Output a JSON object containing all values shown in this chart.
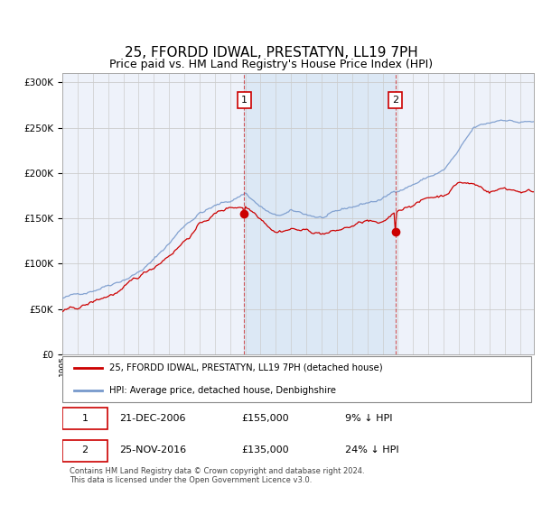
{
  "title": "25, FFORDD IDWAL, PRESTATYN, LL19 7PH",
  "subtitle": "Price paid vs. HM Land Registry's House Price Index (HPI)",
  "title_fontsize": 11,
  "subtitle_fontsize": 9,
  "bg_color": "#ffffff",
  "plot_bg_color": "#eef2fa",
  "grid_color": "#cccccc",
  "hpi_color": "#7799cc",
  "price_color": "#cc0000",
  "shade_color": "#dce8f5",
  "vline_color": "#cc3333",
  "legend_entry1": "25, FFORDD IDWAL, PRESTATYN, LL19 7PH (detached house)",
  "legend_entry2": "HPI: Average price, detached house, Denbighshire",
  "table_row1": [
    "1",
    "21-DEC-2006",
    "£155,000",
    "9% ↓ HPI"
  ],
  "table_row2": [
    "2",
    "25-NOV-2016",
    "£135,000",
    "24% ↓ HPI"
  ],
  "footnote": "Contains HM Land Registry data © Crown copyright and database right 2024.\nThis data is licensed under the Open Government Licence v3.0.",
  "start_year": 1995,
  "end_year": 2025,
  "sale1_year_month": [
    2006,
    12
  ],
  "sale2_year_month": [
    2016,
    11
  ],
  "sale1_price": 155000,
  "sale2_price": 135000,
  "ylim": [
    0,
    310000
  ],
  "yticks": [
    0,
    50000,
    100000,
    150000,
    200000,
    250000,
    300000
  ]
}
